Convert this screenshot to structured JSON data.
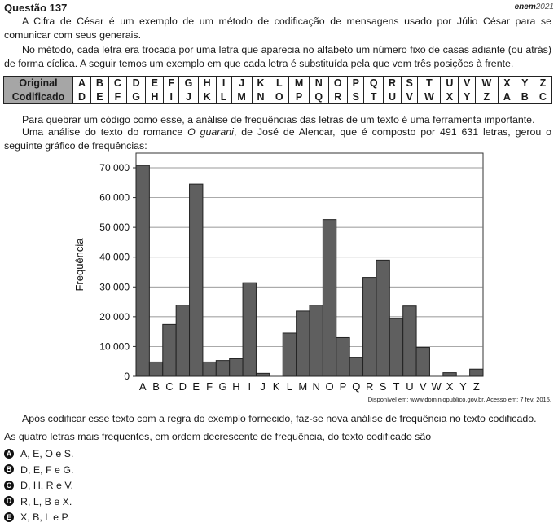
{
  "question": {
    "title": "Questão 137",
    "logo_text": "enem",
    "logo_year": "2021"
  },
  "paragraphs": {
    "p1": "A Cifra de César é um exemplo de um método de codificação de mensagens usado por Júlio César para se comunicar com seus generais.",
    "p2": "No método, cada letra era trocada por uma letra que aparecia no alfabeto um número fixo de casas adiante (ou atrás) de forma cíclica. A seguir temos um exemplo em que cada letra é substituída pela que vem três posições à frente.",
    "p3": "Para quebrar um código como esse, a análise de frequências das letras de um texto é uma ferramenta importante.",
    "p4_before": "Uma análise do texto do romance ",
    "p4_italic": "O guarani",
    "p4_after": ", de José de Alencar, que é composto por 491 631 letras, gerou o seguinte gráfico de frequências:",
    "p5": "Após codificar esse texto com a regra do exemplo fornecido, faz-se nova análise de frequência no texto codificado.",
    "p6": "As quatro letras mais frequentes, em ordem decrescente de frequência, do texto codificado são"
  },
  "cipher_table": {
    "original_label": "Original",
    "coded_label": "Codificado",
    "original": [
      "A",
      "B",
      "C",
      "D",
      "E",
      "F",
      "G",
      "H",
      "I",
      "J",
      "K",
      "L",
      "M",
      "N",
      "O",
      "P",
      "Q",
      "R",
      "S",
      "T",
      "U",
      "V",
      "W",
      "X",
      "Y",
      "Z"
    ],
    "coded": [
      "D",
      "E",
      "F",
      "G",
      "H",
      "I",
      "J",
      "K",
      "L",
      "M",
      "N",
      "O",
      "P",
      "Q",
      "R",
      "S",
      "T",
      "U",
      "V",
      "W",
      "X",
      "Y",
      "Z",
      "A",
      "B",
      "C"
    ]
  },
  "chart_data": {
    "type": "bar",
    "ylabel": "Frequência",
    "xlabel": "",
    "ylim": [
      0,
      70000
    ],
    "yticks": [
      "0",
      "10 000",
      "20 000",
      "30 000",
      "40 000",
      "50 000",
      "60 000",
      "70 000"
    ],
    "ytick_values": [
      0,
      10000,
      20000,
      30000,
      40000,
      50000,
      60000,
      70000
    ],
    "grid": "horizontal",
    "bar_color": "#5f5f5f",
    "categories": [
      "A",
      "B",
      "C",
      "D",
      "E",
      "F",
      "G",
      "H",
      "I",
      "J",
      "K",
      "L",
      "M",
      "N",
      "O",
      "P",
      "Q",
      "R",
      "S",
      "T",
      "U",
      "V",
      "W",
      "X",
      "Y",
      "Z"
    ],
    "values": [
      70800,
      4800,
      17400,
      23900,
      64500,
      4800,
      5300,
      5900,
      31400,
      1000,
      0,
      14500,
      21900,
      23900,
      52600,
      13000,
      6400,
      33200,
      39000,
      19400,
      23600,
      9700,
      0,
      1200,
      0,
      2400
    ]
  },
  "source": "Disponível em: www.dominiopublico.gov.br. Acesso em: 7 fev. 2015.",
  "options": [
    {
      "letter": "A",
      "text": "A, E, O e S."
    },
    {
      "letter": "B",
      "text": "D, E, F e G."
    },
    {
      "letter": "C",
      "text": "D, H, R e V."
    },
    {
      "letter": "D",
      "text": "R, L, B e X."
    },
    {
      "letter": "E",
      "text": "X, B, L e P."
    }
  ]
}
